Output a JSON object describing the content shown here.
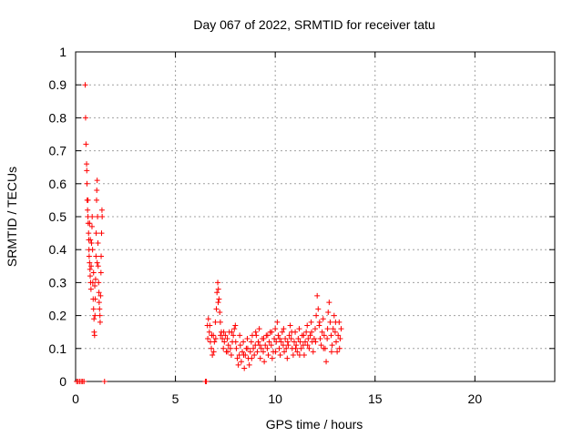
{
  "chart_data": {
    "type": "scatter",
    "title": "Day 067 of 2022, SRMTID for receiver tatu",
    "xlabel": "GPS time / hours",
    "ylabel": "SRMTID / TECUs",
    "xlim": [
      0,
      24
    ],
    "ylim": [
      0,
      1
    ],
    "x_ticks": [
      0,
      5,
      10,
      15,
      20
    ],
    "x_tick_labels": [
      "0",
      "5",
      "10",
      "15",
      "20"
    ],
    "y_ticks": [
      0,
      0.1,
      0.2,
      0.3,
      0.4,
      0.5,
      0.6,
      0.7,
      0.8,
      0.9,
      1
    ],
    "y_tick_labels": [
      "0",
      "0.1",
      "0.2",
      "0.3",
      "0.4",
      "0.5",
      "0.6",
      "0.7",
      "0.8",
      "0.9",
      "1"
    ],
    "grid": true,
    "marker": "+",
    "colors": {
      "series": "#ff0000",
      "grid": "#a0a0a0",
      "axis": "#000000"
    },
    "series": [
      {
        "name": "SRMTID",
        "points": [
          [
            0.05,
            0.0
          ],
          [
            0.12,
            0.0
          ],
          [
            0.2,
            0.0
          ],
          [
            0.28,
            0.0
          ],
          [
            0.35,
            0.0
          ],
          [
            0.42,
            0.0
          ],
          [
            1.45,
            0.0
          ],
          [
            0.48,
            0.9
          ],
          [
            0.5,
            0.8
          ],
          [
            0.52,
            0.72
          ],
          [
            0.55,
            0.66
          ],
          [
            0.56,
            0.64
          ],
          [
            0.57,
            0.6
          ],
          [
            0.58,
            0.55
          ],
          [
            0.6,
            0.52
          ],
          [
            0.62,
            0.5
          ],
          [
            0.63,
            0.48
          ],
          [
            0.65,
            0.45
          ],
          [
            0.66,
            0.43
          ],
          [
            0.67,
            0.4
          ],
          [
            0.68,
            0.38
          ],
          [
            0.7,
            0.36
          ],
          [
            0.72,
            0.34
          ],
          [
            0.73,
            0.32
          ],
          [
            0.75,
            0.3
          ],
          [
            0.77,
            0.28
          ],
          [
            0.78,
            0.35
          ],
          [
            0.8,
            0.42
          ],
          [
            0.82,
            0.47
          ],
          [
            0.83,
            0.5
          ],
          [
            0.85,
            0.4
          ],
          [
            0.86,
            0.3
          ],
          [
            0.88,
            0.25
          ],
          [
            0.9,
            0.22
          ],
          [
            0.92,
            0.19
          ],
          [
            0.93,
            0.15
          ],
          [
            0.95,
            0.14
          ],
          [
            0.97,
            0.2
          ],
          [
            0.98,
            0.25
          ],
          [
            1.0,
            0.31
          ],
          [
            1.02,
            0.38
          ],
          [
            1.03,
            0.45
          ],
          [
            1.05,
            0.55
          ],
          [
            1.06,
            0.58
          ],
          [
            1.08,
            0.61
          ],
          [
            1.1,
            0.5
          ],
          [
            1.12,
            0.42
          ],
          [
            1.13,
            0.35
          ],
          [
            1.15,
            0.3
          ],
          [
            1.17,
            0.27
          ],
          [
            1.18,
            0.24
          ],
          [
            1.2,
            0.22
          ],
          [
            1.22,
            0.2
          ],
          [
            1.23,
            0.18
          ],
          [
            1.25,
            0.26
          ],
          [
            1.27,
            0.33
          ],
          [
            1.28,
            0.38
          ],
          [
            1.3,
            0.45
          ],
          [
            1.32,
            0.52
          ],
          [
            1.33,
            0.5
          ],
          [
            0.62,
            0.55
          ],
          [
            0.7,
            0.48
          ],
          [
            0.74,
            0.43
          ],
          [
            0.9,
            0.33
          ],
          [
            0.96,
            0.29
          ],
          [
            1.08,
            0.36
          ],
          [
            6.5,
            0.0
          ],
          [
            6.55,
            0.0
          ],
          [
            6.6,
            0.17
          ],
          [
            6.65,
            0.19
          ],
          [
            6.7,
            0.15
          ],
          [
            6.75,
            0.12
          ],
          [
            6.8,
            0.1
          ],
          [
            6.85,
            0.08
          ],
          [
            6.9,
            0.14
          ],
          [
            6.95,
            0.12
          ],
          [
            7.0,
            0.18
          ],
          [
            7.05,
            0.22
          ],
          [
            7.08,
            0.27
          ],
          [
            7.12,
            0.3
          ],
          [
            7.15,
            0.28
          ],
          [
            7.18,
            0.25
          ],
          [
            7.22,
            0.21
          ],
          [
            7.25,
            0.18
          ],
          [
            7.3,
            0.15
          ],
          [
            7.35,
            0.13
          ],
          [
            7.4,
            0.1
          ],
          [
            7.45,
            0.12
          ],
          [
            7.5,
            0.14
          ],
          [
            7.55,
            0.09
          ],
          [
            7.6,
            0.13
          ],
          [
            7.65,
            0.11
          ],
          [
            7.7,
            0.15
          ],
          [
            7.75,
            0.1
          ],
          [
            7.8,
            0.08
          ],
          [
            7.85,
            0.12
          ],
          [
            7.9,
            0.14
          ],
          [
            7.95,
            0.16
          ],
          [
            8.0,
            0.17
          ],
          [
            8.05,
            0.1
          ],
          [
            8.1,
            0.07
          ],
          [
            8.15,
            0.05
          ],
          [
            8.2,
            0.08
          ],
          [
            8.25,
            0.11
          ],
          [
            8.3,
            0.06
          ],
          [
            8.35,
            0.09
          ],
          [
            8.4,
            0.12
          ],
          [
            8.45,
            0.04
          ],
          [
            8.5,
            0.08
          ],
          [
            8.55,
            0.1
          ],
          [
            8.6,
            0.13
          ],
          [
            8.65,
            0.07
          ],
          [
            8.7,
            0.05
          ],
          [
            8.75,
            0.09
          ],
          [
            8.8,
            0.12
          ],
          [
            8.85,
            0.14
          ],
          [
            8.9,
            0.1
          ],
          [
            8.95,
            0.08
          ],
          [
            9.0,
            0.11
          ],
          [
            9.05,
            0.14
          ],
          [
            9.1,
            0.09
          ],
          [
            9.15,
            0.12
          ],
          [
            9.2,
            0.16
          ],
          [
            9.25,
            0.07
          ],
          [
            9.3,
            0.1
          ],
          [
            9.35,
            0.13
          ],
          [
            9.4,
            0.09
          ],
          [
            9.45,
            0.06
          ],
          [
            9.5,
            0.11
          ],
          [
            9.55,
            0.14
          ],
          [
            9.6,
            0.1
          ],
          [
            9.65,
            0.08
          ],
          [
            9.7,
            0.12
          ],
          [
            9.75,
            0.15
          ],
          [
            9.8,
            0.11
          ],
          [
            9.85,
            0.07
          ],
          [
            9.9,
            0.09
          ],
          [
            9.95,
            0.13
          ],
          [
            10.0,
            0.16
          ],
          [
            10.05,
            0.12
          ],
          [
            10.1,
            0.18
          ],
          [
            10.15,
            0.14
          ],
          [
            10.2,
            0.1
          ],
          [
            10.25,
            0.08
          ],
          [
            10.3,
            0.12
          ],
          [
            10.35,
            0.15
          ],
          [
            10.4,
            0.11
          ],
          [
            10.45,
            0.09
          ],
          [
            10.5,
            0.13
          ],
          [
            10.55,
            0.1
          ],
          [
            10.6,
            0.07
          ],
          [
            10.65,
            0.11
          ],
          [
            10.7,
            0.14
          ],
          [
            10.75,
            0.17
          ],
          [
            10.8,
            0.13
          ],
          [
            10.85,
            0.1
          ],
          [
            10.9,
            0.08
          ],
          [
            10.95,
            0.12
          ],
          [
            11.0,
            0.15
          ],
          [
            11.05,
            0.11
          ],
          [
            11.1,
            0.09
          ],
          [
            11.15,
            0.13
          ],
          [
            11.2,
            0.16
          ],
          [
            11.25,
            0.12
          ],
          [
            11.3,
            0.1
          ],
          [
            11.35,
            0.14
          ],
          [
            11.4,
            0.11
          ],
          [
            11.45,
            0.08
          ],
          [
            11.5,
            0.12
          ],
          [
            11.55,
            0.15
          ],
          [
            11.6,
            0.17
          ],
          [
            11.65,
            0.13
          ],
          [
            11.7,
            0.1
          ],
          [
            11.75,
            0.14
          ],
          [
            11.8,
            0.18
          ],
          [
            11.85,
            0.12
          ],
          [
            11.9,
            0.09
          ],
          [
            11.95,
            0.13
          ],
          [
            12.0,
            0.16
          ],
          [
            12.05,
            0.2
          ],
          [
            12.1,
            0.26
          ],
          [
            12.15,
            0.22
          ],
          [
            12.2,
            0.17
          ],
          [
            12.25,
            0.13
          ],
          [
            12.3,
            0.11
          ],
          [
            12.35,
            0.15
          ],
          [
            12.4,
            0.19
          ],
          [
            12.45,
            0.14
          ],
          [
            12.5,
            0.1
          ],
          [
            12.55,
            0.06
          ],
          [
            12.6,
            0.13
          ],
          [
            12.65,
            0.21
          ],
          [
            12.7,
            0.24
          ],
          [
            12.75,
            0.18
          ],
          [
            12.8,
            0.14
          ],
          [
            12.85,
            0.11
          ],
          [
            12.9,
            0.16
          ],
          [
            12.95,
            0.2
          ],
          [
            13.0,
            0.15
          ],
          [
            13.05,
            0.12
          ],
          [
            13.1,
            0.09
          ],
          [
            13.15,
            0.14
          ],
          [
            13.2,
            0.18
          ],
          [
            13.25,
            0.13
          ],
          [
            13.3,
            0.16
          ],
          [
            6.62,
            0.13
          ],
          [
            6.72,
            0.17
          ],
          [
            6.82,
            0.14
          ],
          [
            6.92,
            0.09
          ],
          [
            7.02,
            0.13
          ],
          [
            7.14,
            0.24
          ],
          [
            7.26,
            0.14
          ],
          [
            7.42,
            0.15
          ],
          [
            7.62,
            0.09
          ],
          [
            7.82,
            0.15
          ],
          [
            8.02,
            0.12
          ],
          [
            8.22,
            0.14
          ],
          [
            8.42,
            0.08
          ],
          [
            8.62,
            0.1
          ],
          [
            8.82,
            0.07
          ],
          [
            9.02,
            0.15
          ],
          [
            9.22,
            0.11
          ],
          [
            9.42,
            0.13
          ],
          [
            9.62,
            0.14
          ],
          [
            9.82,
            0.15
          ],
          [
            10.02,
            0.09
          ],
          [
            10.22,
            0.13
          ],
          [
            10.42,
            0.16
          ],
          [
            10.62,
            0.12
          ],
          [
            10.82,
            0.15
          ],
          [
            11.02,
            0.1
          ],
          [
            11.22,
            0.08
          ],
          [
            11.42,
            0.14
          ],
          [
            11.62,
            0.11
          ],
          [
            11.82,
            0.15
          ],
          [
            12.02,
            0.12
          ],
          [
            12.22,
            0.18
          ],
          [
            12.42,
            0.1
          ],
          [
            12.62,
            0.16
          ],
          [
            12.82,
            0.09
          ],
          [
            13.02,
            0.18
          ],
          [
            13.22,
            0.1
          ]
        ]
      }
    ]
  }
}
